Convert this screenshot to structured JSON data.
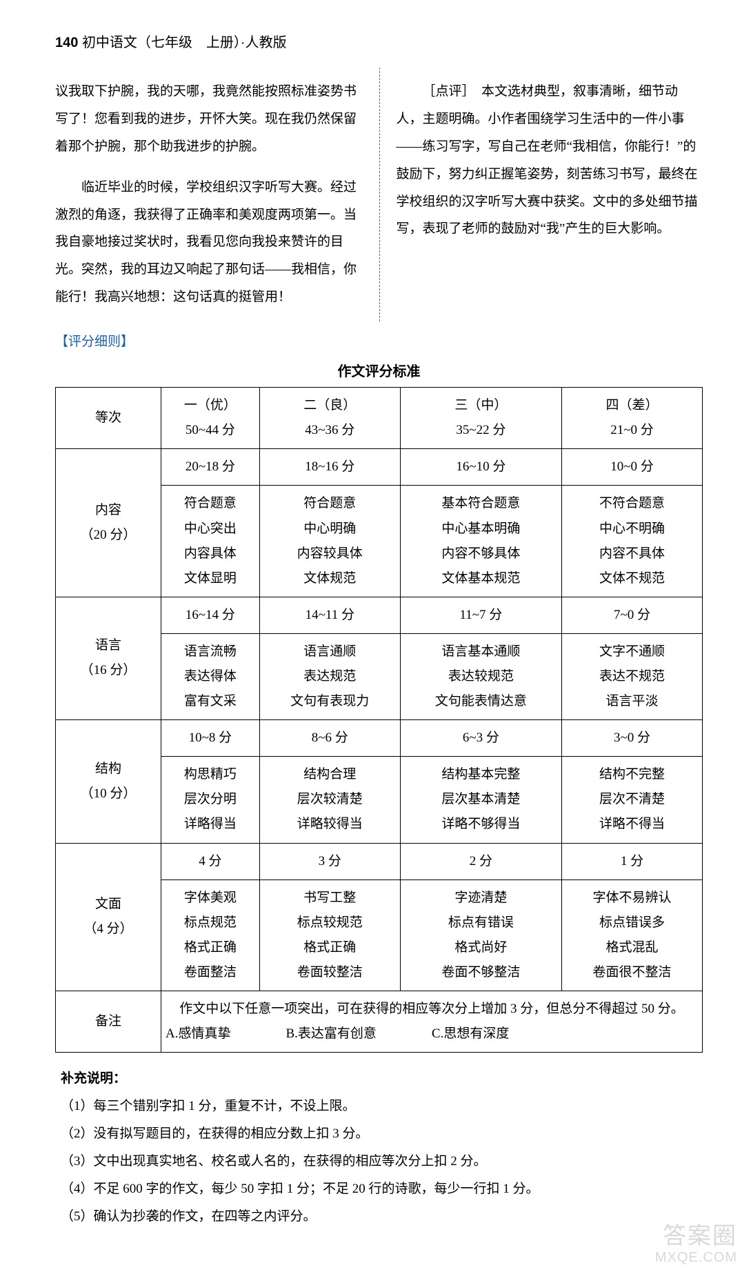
{
  "header": {
    "pagenum": "140",
    "title": "初中语文（七年级　上册）·人教版"
  },
  "left_paragraphs": [
    "议我取下护腕，我的天哪，我竟然能按照标准姿势书写了！您看到我的进步，开怀大笑。现在我仍然保留着那个护腕，那个助我进步的护腕。",
    "临近毕业的时候，学校组织汉字听写大赛。经过激烈的角逐，我获得了正确率和美观度两项第一。当我自豪地接过奖状时，我看见您向我投来赞许的目光。突然，我的耳边又响起了那句话——我相信，你能行！我高兴地想：这句话真的挺管用！"
  ],
  "right_paragraph": "［点评］　本文选材典型，叙事清晰，细节动人，主题明确。小作者围绕学习生活中的一件小事——练习写字，写自己在老师“我相信，你能行！”的鼓励下，努力纠正握笔姿势，刻苦练习书写，最终在学校组织的汉字听写大赛中获奖。文中的多处细节描写，表现了老师的鼓励对“我”产生的巨大影响。",
  "rubric_label": "【评分细则】",
  "table_title": "作文评分标准",
  "columns": {
    "level_label": "等次",
    "levels": [
      {
        "name": "一（优）",
        "range": "50~44 分"
      },
      {
        "name": "二（良）",
        "range": "43~36 分"
      },
      {
        "name": "三（中）",
        "range": "35~22 分"
      },
      {
        "name": "四（差）",
        "range": "21~0 分"
      }
    ]
  },
  "sections": [
    {
      "name": "内容",
      "points": "（20 分）",
      "ranges": [
        "20~18 分",
        "18~16 分",
        "16~10 分",
        "10~0 分"
      ],
      "rows": [
        [
          "符合题意",
          "符合题意",
          "基本符合题意",
          "不符合题意"
        ],
        [
          "中心突出",
          "中心明确",
          "中心基本明确",
          "中心不明确"
        ],
        [
          "内容具体",
          "内容较具体",
          "内容不够具体",
          "内容不具体"
        ],
        [
          "文体显明",
          "文体规范",
          "文体基本规范",
          "文体不规范"
        ]
      ]
    },
    {
      "name": "语言",
      "points": "（16 分）",
      "ranges": [
        "16~14 分",
        "14~11 分",
        "11~7 分",
        "7~0 分"
      ],
      "rows": [
        [
          "语言流畅",
          "语言通顺",
          "语言基本通顺",
          "文字不通顺"
        ],
        [
          "表达得体",
          "表达规范",
          "表达较规范",
          "表达不规范"
        ],
        [
          "富有文采",
          "文句有表现力",
          "文句能表情达意",
          "语言平淡"
        ]
      ]
    },
    {
      "name": "结构",
      "points": "（10 分）",
      "ranges": [
        "10~8 分",
        "8~6 分",
        "6~3 分",
        "3~0 分"
      ],
      "rows": [
        [
          "构思精巧",
          "结构合理",
          "结构基本完整",
          "结构不完整"
        ],
        [
          "层次分明",
          "层次较清楚",
          "层次基本清楚",
          "层次不清楚"
        ],
        [
          "详略得当",
          "详略较得当",
          "详略不够得当",
          "详略不得当"
        ]
      ]
    },
    {
      "name": "文面",
      "points": "（4 分）",
      "ranges": [
        "4 分",
        "3 分",
        "2 分",
        "1 分"
      ],
      "rows": [
        [
          "字体美观",
          "书写工整",
          "字迹清楚",
          "字体不易辨认"
        ],
        [
          "标点规范",
          "标点较规范",
          "标点有错误",
          "标点错误多"
        ],
        [
          "格式正确",
          "格式正确",
          "格式尚好",
          "格式混乱"
        ],
        [
          "卷面整洁",
          "卷面较整洁",
          "卷面不够整洁",
          "卷面很不整洁"
        ]
      ]
    }
  ],
  "notes": {
    "label": "备注",
    "line1": "作文中以下任意一项突出，可在获得的相应等次分上增加 3 分，但总分不得超过 50 分。",
    "items": [
      "A.感情真挚",
      "B.表达富有创意",
      "C.思想有深度"
    ]
  },
  "supplement": {
    "title": "补充说明：",
    "items": [
      "（1）每三个错别字扣 1 分，重复不计，不设上限。",
      "（2）没有拟写题目的，在获得的相应分数上扣 3 分。",
      "（3）文中出现真实地名、校名或人名的，在获得的相应等次分上扣 2 分。",
      "（4）不足 600 字的作文，每少 50 字扣 1 分；不足 20 行的诗歌，每少一行扣 1 分。",
      "（5）确认为抄袭的作文，在四等之内评分。"
    ]
  },
  "watermark": {
    "cn": "答案圈",
    "en": "MXQE.COM"
  }
}
